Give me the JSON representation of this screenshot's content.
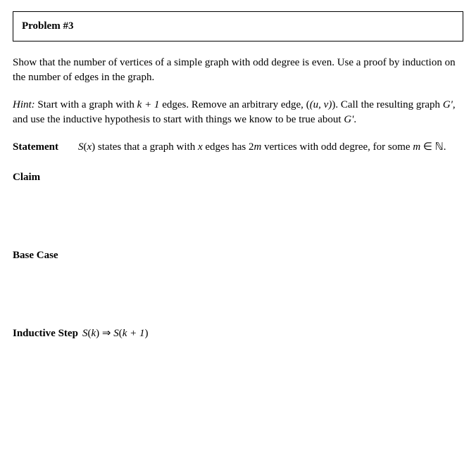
{
  "problem": {
    "header": "Problem #3",
    "intro": "Show that the number of vertices of a simple graph with odd degree is even. Use a proof by induction on the number of edges in the graph.",
    "hint_label": "Hint:",
    "hint_text_1": " Start with a graph with ",
    "hint_math_1": "k + 1",
    "hint_text_2": " edges. Remove an arbitrary edge, ",
    "hint_math_2": "(u, v)",
    "hint_text_3": ". Call the resulting graph ",
    "hint_math_3": "G'",
    "hint_text_4": ", and use the inductive hypothesis to start with things we know to be true about ",
    "hint_math_4": "G'",
    "hint_text_5": "."
  },
  "statement": {
    "label": "Statement",
    "s1": "S",
    "s2": "(",
    "s3": "x",
    "s4": ")",
    "text_1": " states that a graph with ",
    "var_x": "x",
    "text_2": " edges has ",
    "var_2m": "2m",
    "text_3": " vertices with odd degree, for some ",
    "var_m": "m",
    "elem": " ∈ ",
    "nat": "ℕ",
    "text_4": "."
  },
  "claim": {
    "label": "Claim"
  },
  "base_case": {
    "label": "Base Case"
  },
  "inductive": {
    "label": "Inductive Step",
    "s1": "S",
    "paren_o1": "(",
    "k1": "k",
    "paren_c1": ")",
    "implies": " ⇒ ",
    "s2": "S",
    "paren_o2": "(",
    "k2": "k + 1",
    "paren_c2": ")"
  },
  "styling": {
    "font_family": "Times New Roman",
    "body_fontsize": 15,
    "text_color": "#000000",
    "background_color": "#ffffff",
    "box_border_color": "#000000",
    "box_border_width": 1.5
  }
}
